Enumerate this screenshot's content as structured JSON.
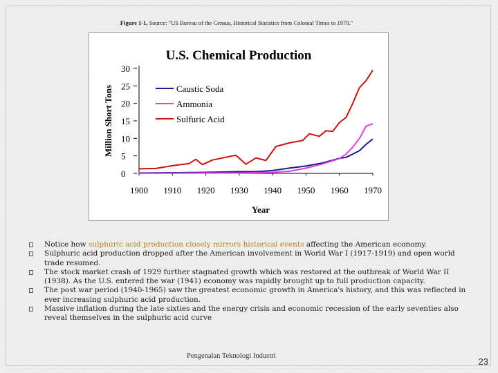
{
  "caption": {
    "label": "Figure 1-1,",
    "text": " Source: \"US Bureau of the Census, Historical Statistics from Colonial Times to 1970.\""
  },
  "chart_data": {
    "type": "line",
    "title": "U.S. Chemical Production",
    "xlabel": "Year",
    "ylabel": "Million Short Tons",
    "xlim": [
      1900,
      1970
    ],
    "ylim": [
      0,
      30
    ],
    "x_ticks": [
      "1900",
      "1910",
      "1920",
      "1930",
      "1940",
      "1950",
      "1960",
      "1970"
    ],
    "y_ticks": [
      "30",
      "25",
      "20",
      "15",
      "10",
      "5",
      "0"
    ],
    "legend_position": "top-left",
    "series": [
      {
        "name": "Caustic Soda",
        "color": "#1a1a8a",
        "points": [
          [
            1900,
            0.1
          ],
          [
            1910,
            0.2
          ],
          [
            1920,
            0.3
          ],
          [
            1925,
            0.4
          ],
          [
            1930,
            0.5
          ],
          [
            1935,
            0.5
          ],
          [
            1940,
            0.8
          ],
          [
            1945,
            1.5
          ],
          [
            1950,
            2.1
          ],
          [
            1955,
            3.0
          ],
          [
            1960,
            4.3
          ],
          [
            1962,
            4.6
          ],
          [
            1964,
            5.5
          ],
          [
            1966,
            6.5
          ],
          [
            1968,
            8.3
          ],
          [
            1970,
            9.8
          ]
        ]
      },
      {
        "name": "Ammonia",
        "color": "#e040e0",
        "points": [
          [
            1900,
            0
          ],
          [
            1920,
            0.1
          ],
          [
            1930,
            0.1
          ],
          [
            1940,
            0.3
          ],
          [
            1945,
            0.6
          ],
          [
            1950,
            1.5
          ],
          [
            1955,
            2.7
          ],
          [
            1960,
            4.2
          ],
          [
            1962,
            5.5
          ],
          [
            1964,
            7.5
          ],
          [
            1966,
            10.0
          ],
          [
            1968,
            13.5
          ],
          [
            1970,
            14.2
          ]
        ]
      },
      {
        "name": "Sulfuric Acid",
        "color": "#cc1111",
        "points": [
          [
            1900,
            1.3
          ],
          [
            1905,
            1.4
          ],
          [
            1910,
            2.2
          ],
          [
            1915,
            2.8
          ],
          [
            1917,
            4.0
          ],
          [
            1919,
            2.5
          ],
          [
            1922,
            3.8
          ],
          [
            1926,
            4.6
          ],
          [
            1929,
            5.2
          ],
          [
            1932,
            2.6
          ],
          [
            1935,
            4.4
          ],
          [
            1938,
            3.7
          ],
          [
            1941,
            7.7
          ],
          [
            1945,
            8.7
          ],
          [
            1949,
            9.4
          ],
          [
            1951,
            11.3
          ],
          [
            1954,
            10.6
          ],
          [
            1956,
            12.2
          ],
          [
            1958,
            12.0
          ],
          [
            1960,
            14.5
          ],
          [
            1962,
            16.0
          ],
          [
            1964,
            20.0
          ],
          [
            1966,
            24.5
          ],
          [
            1968,
            26.5
          ],
          [
            1969,
            28.0
          ],
          [
            1970,
            29.5
          ]
        ]
      }
    ]
  },
  "bullets": [
    {
      "pre": "Notice how ",
      "highlight": "sulphuric acid production closely mirrors historical events",
      "post": " affecting the American economy."
    },
    {
      "pre": "Sulphuric acid production dropped after the American involvement in World War I (1917-1919) and open world trade resumed.",
      "highlight": "",
      "post": ""
    },
    {
      "pre": "The stock market crash of 1929 further stagnated growth which was restored at the outbreak of World War II (1938). As the U.S. entered the war (1941) economy was rapidly brought up to full production capacity.",
      "highlight": "",
      "post": ""
    },
    {
      "pre": "The post war period (1940-1965) saw the greatest economic growth in America's history, and this was reflected in ever increasing sulphuric acid production.",
      "highlight": "",
      "post": ""
    },
    {
      "pre": "Massive inflation during the late sixties and the energy crisis and economic recession of the early seventies also reveal themselves in the sulphuric acid curve",
      "highlight": "",
      "post": ""
    }
  ],
  "footer": "Pengenalan Teknologi Industri",
  "page_number": "23"
}
